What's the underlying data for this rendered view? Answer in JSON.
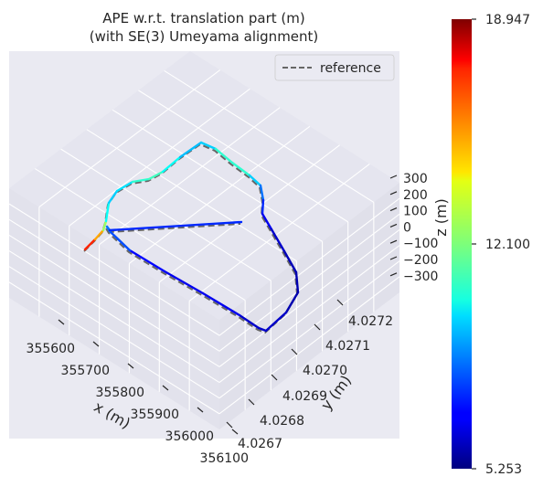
{
  "chart_data": {
    "type": "line",
    "projection": "3d",
    "title": "APE w.r.t. translation part (m)",
    "subtitle": "(with SE(3) Umeyama alignment)",
    "xlabel": "x (m)",
    "ylabel": "y (m)",
    "zlabel": "z (m)",
    "x_ticks": [
      "355600",
      "355700",
      "355800",
      "355900",
      "356000",
      "356100"
    ],
    "y_ticks": [
      "4.0267",
      "4.0268",
      "4.0269",
      "4.0270",
      "4.0271",
      "4.0272"
    ],
    "z_ticks": [
      "300",
      "200",
      "100",
      "0",
      "−100",
      "−200",
      "−300"
    ],
    "legend": {
      "entries": [
        "reference"
      ],
      "position": "top-right"
    },
    "grid": true,
    "colorbar": {
      "colormap": "jet",
      "min": 5.253,
      "max": 18.947,
      "ticks": [
        "18.947",
        "12.100",
        "5.253"
      ],
      "tick_values": [
        18.947,
        12.1,
        5.253
      ]
    },
    "trajectory": [
      {
        "error": 17.5
      },
      {
        "error": 16.0
      },
      {
        "error": 14.0
      },
      {
        "error": 11.0
      },
      {
        "error": 10.0
      },
      {
        "error": 9.5
      },
      {
        "error": 10.5
      },
      {
        "error": 11.5
      },
      {
        "error": 11.0
      },
      {
        "error": 10.0
      },
      {
        "error": 9.0
      },
      {
        "error": 10.5
      },
      {
        "error": 11.5
      },
      {
        "error": 10.5
      },
      {
        "error": 9.0
      },
      {
        "error": 8.0
      },
      {
        "error": 7.0
      },
      {
        "error": 6.5
      },
      {
        "error": 6.0
      },
      {
        "error": 6.0
      },
      {
        "error": 5.8
      },
      {
        "error": 6.0
      },
      {
        "error": 6.5
      },
      {
        "error": 6.0
      },
      {
        "error": 6.5
      },
      {
        "error": 7.0
      },
      {
        "error": 6.5
      },
      {
        "error": 7.5
      },
      {
        "error": 8.5
      },
      {
        "error": 9.0
      },
      {
        "error": 8.0
      },
      {
        "error": 7.0
      }
    ]
  }
}
